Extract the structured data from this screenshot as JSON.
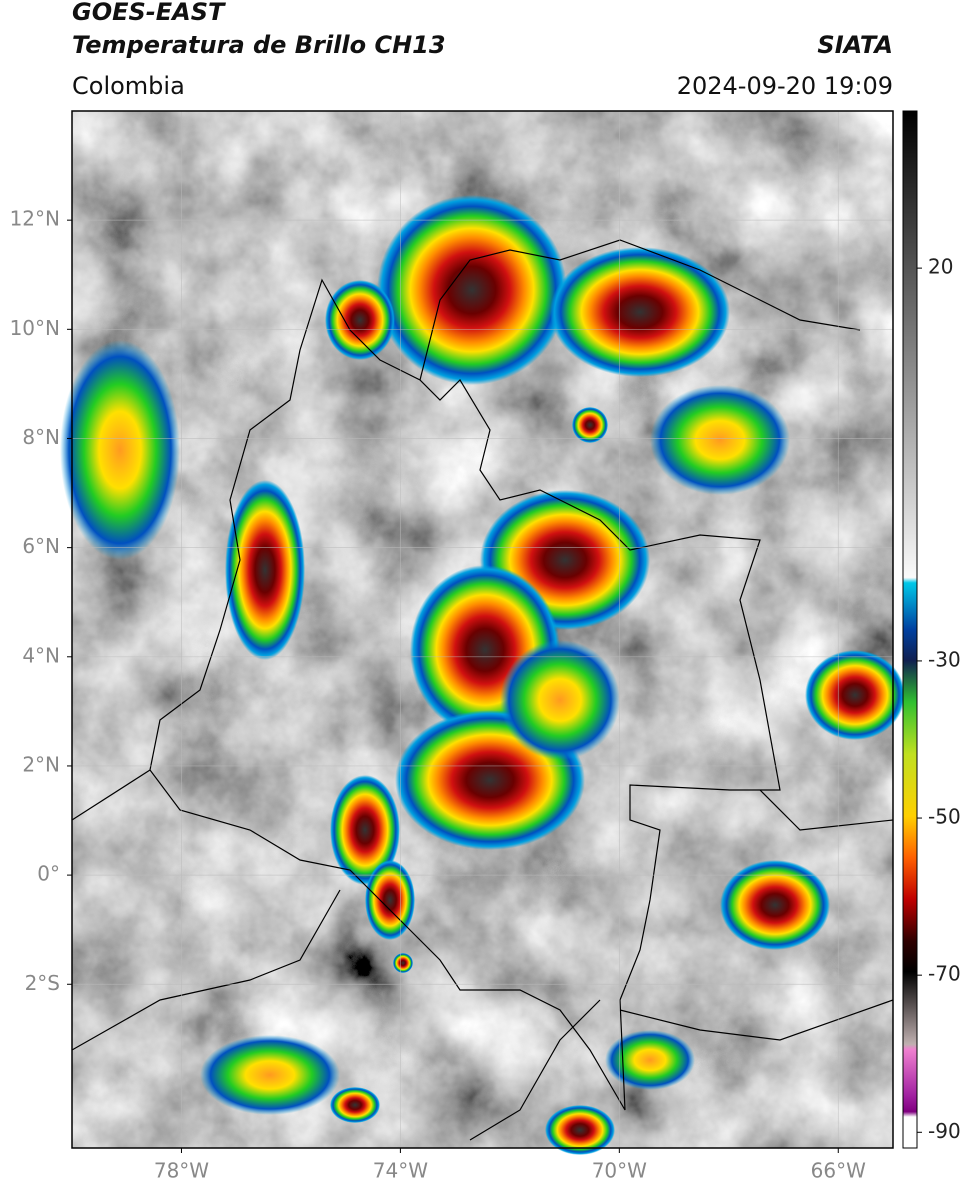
{
  "header": {
    "title": "GOES-EAST",
    "subtitle": "Temperatura de Brillo CH13",
    "source": "SIATA",
    "region": "Colombia",
    "datetime": "2024-09-20 19:09"
  },
  "map": {
    "xlim": [
      -80,
      -65
    ],
    "ylim": [
      -5,
      14
    ],
    "xticks": [
      {
        "value": -78,
        "label": "78°W"
      },
      {
        "value": -74,
        "label": "74°W"
      },
      {
        "value": -70,
        "label": "70°W"
      },
      {
        "value": -66,
        "label": "66°W"
      }
    ],
    "yticks": [
      {
        "value": 12,
        "label": "12°N"
      },
      {
        "value": 10,
        "label": "10°N"
      },
      {
        "value": 8,
        "label": "8°N"
      },
      {
        "value": 6,
        "label": "6°N"
      },
      {
        "value": 4,
        "label": "4°N"
      },
      {
        "value": 2,
        "label": "2°N"
      },
      {
        "value": 0,
        "label": "0°"
      },
      {
        "value": -2,
        "label": "2°S"
      }
    ],
    "grid": true
  },
  "colorbar": {
    "lim": [
      -92,
      40
    ],
    "ticks": [
      20,
      -30,
      -50,
      -70,
      -90
    ]
  }
}
